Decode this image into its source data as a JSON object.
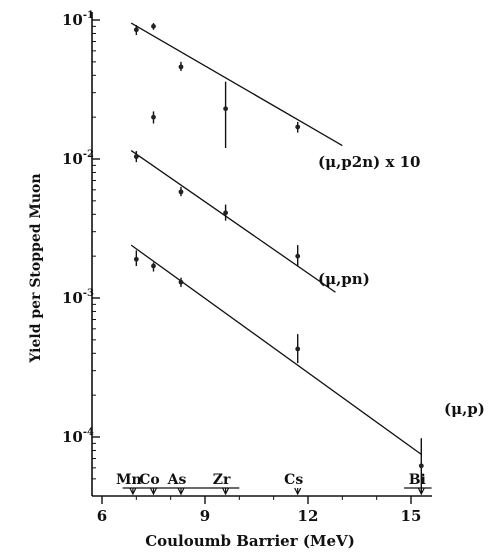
{
  "chart_data": {
    "type": "scatter",
    "y_scale": "log",
    "xlabel": "Couloumb Barrier (MeV)",
    "ylabel": "Yield per Stopped Muon",
    "xlim": [
      5,
      16
    ],
    "ylim": [
      3e-05,
      0.11
    ],
    "x_ticks": [
      {
        "value": 6,
        "label": "6"
      },
      {
        "value": 9,
        "label": "9"
      },
      {
        "value": 12,
        "label": "12"
      },
      {
        "value": 15,
        "label": "15"
      }
    ],
    "y_ticks": [
      {
        "value": 0.1,
        "label": "10-1",
        "base": "10",
        "exp": "-1"
      },
      {
        "value": 0.01,
        "label": "10-2",
        "base": "10",
        "exp": "-2"
      },
      {
        "value": 0.001,
        "label": "10-3",
        "base": "10",
        "exp": "-3"
      },
      {
        "value": 0.0001,
        "label": "10-4",
        "base": "10",
        "exp": "-4"
      }
    ],
    "series": [
      {
        "name": "(μ,p2n) x 10",
        "fit": {
          "x0": 6.85,
          "y0": 0.095,
          "x1": 13.0,
          "y1": 0.0125
        },
        "points": [
          {
            "x": 7.0,
            "y": 0.085,
            "lo": 0.078,
            "hi": 0.092
          },
          {
            "x": 7.5,
            "y": 0.09,
            "lo": 0.085,
            "hi": 0.095
          },
          {
            "x": 8.3,
            "y": 0.046,
            "lo": 0.043,
            "hi": 0.05
          },
          {
            "x": 7.5,
            "y": 0.02,
            "lo": 0.018,
            "hi": 0.022
          },
          {
            "x": 9.6,
            "y": 0.023,
            "lo": 0.012,
            "hi": 0.036
          },
          {
            "x": 11.7,
            "y": 0.017,
            "lo": 0.0155,
            "hi": 0.0185
          }
        ]
      },
      {
        "name": "(μ,pn)",
        "fit": {
          "x0": 6.85,
          "y0": 0.0115,
          "x1": 12.8,
          "y1": 0.0011
        },
        "points": [
          {
            "x": 7.0,
            "y": 0.0104,
            "lo": 0.0095,
            "hi": 0.0114
          },
          {
            "x": 8.3,
            "y": 0.0058,
            "lo": 0.0054,
            "hi": 0.0063
          },
          {
            "x": 9.6,
            "y": 0.0041,
            "lo": 0.0036,
            "hi": 0.0047
          },
          {
            "x": 11.7,
            "y": 0.002,
            "lo": 0.0017,
            "hi": 0.0024
          }
        ]
      },
      {
        "name": "(μ,p)",
        "fit": {
          "x0": 6.85,
          "y0": 0.0024,
          "x1": 15.3,
          "y1": 7.5e-05
        },
        "points": [
          {
            "x": 7.0,
            "y": 0.0019,
            "lo": 0.0017,
            "hi": 0.0022
          },
          {
            "x": 7.5,
            "y": 0.0017,
            "lo": 0.00155,
            "hi": 0.0018
          },
          {
            "x": 8.3,
            "y": 0.0013,
            "lo": 0.0012,
            "hi": 0.0014
          },
          {
            "x": 11.7,
            "y": 0.00043,
            "lo": 0.00034,
            "hi": 0.00055
          },
          {
            "x": 15.3,
            "y": 6.2e-05,
            "lo": 4e-05,
            "hi": 9.8e-05
          }
        ]
      }
    ],
    "element_markers": [
      {
        "symbol": "Mn",
        "x": 6.9
      },
      {
        "symbol": "Co",
        "x": 7.5
      },
      {
        "symbol": "As",
        "x": 8.3
      },
      {
        "symbol": "Zr",
        "x": 9.6
      },
      {
        "symbol": "Cs",
        "x": 11.7
      },
      {
        "symbol": "Bi",
        "x": 15.3
      }
    ]
  }
}
